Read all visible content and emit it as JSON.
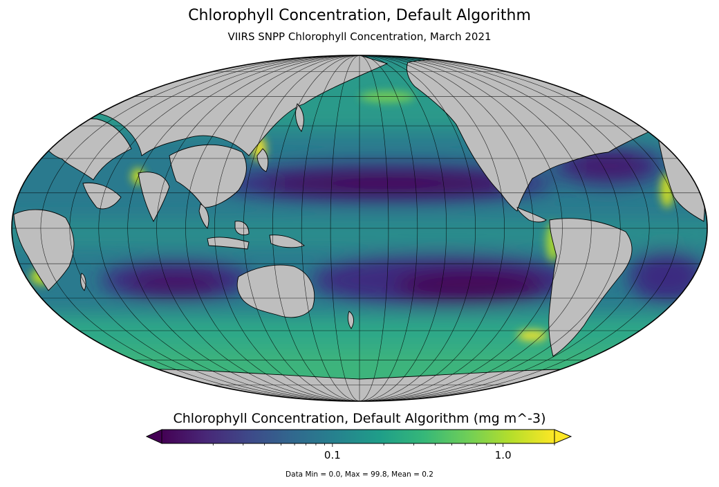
{
  "title": "Chlorophyll Concentration, Default Algorithm",
  "subtitle": "VIIRS SNPP Chlorophyll Concentration, March 2021",
  "colorbar": {
    "label": "Chlorophyll Concentration, Default Algorithm (mg m^-3)",
    "scale": "log",
    "range": [
      0.01,
      2.0
    ],
    "ticks": [
      {
        "value": 0.1,
        "label": "0.1"
      },
      {
        "value": 1.0,
        "label": "1.0"
      }
    ],
    "extend": "both",
    "colormap": [
      "#440154",
      "#482777",
      "#3e4989",
      "#31688e",
      "#26828e",
      "#1f9e89",
      "#35b779",
      "#6ece58",
      "#b5de2b",
      "#fde725"
    ]
  },
  "stats": "Data Min = 0.0, Max = 99.8, Mean = 0.2",
  "map": {
    "projection": "mollweide",
    "central_longitude": 180,
    "land_color": "#bebebe",
    "graticule_color": "#000000"
  }
}
